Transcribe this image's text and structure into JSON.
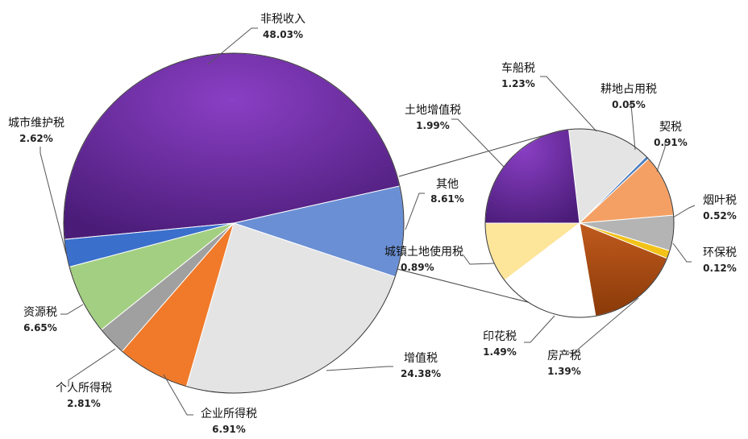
{
  "chart_data": {
    "type": "pie",
    "subtype": "pie-of-pie",
    "title": "",
    "main_pie": [
      {
        "name": "非税收入",
        "pct": "48.03%",
        "value": 48.03,
        "color": "#7030a0"
      },
      {
        "name": "其他",
        "pct": "8.61%",
        "value": 8.61,
        "color": "#6a8fd4"
      },
      {
        "name": "增值税",
        "pct": "24.38%",
        "value": 24.38,
        "color": "#e4e4e4"
      },
      {
        "name": "企业所得税",
        "pct": "6.91%",
        "value": 6.91,
        "color": "#f07a2a"
      },
      {
        "name": "个人所得税",
        "pct": "2.81%",
        "value": 2.81,
        "color": "#a0a0a0"
      },
      {
        "name": "资源税",
        "pct": "6.65%",
        "value": 6.65,
        "color": "#a3cf82"
      },
      {
        "name": "城市维护税",
        "pct": "2.62%",
        "value": 2.62,
        "color": "#3a6fcc"
      }
    ],
    "secondary_pie": [
      {
        "name": "车船税",
        "pct": "1.23%",
        "value": 1.23,
        "color": "#e4e4e4"
      },
      {
        "name": "耕地占用税",
        "pct": "0.05%",
        "value": 0.05,
        "color": "#4f7fc0"
      },
      {
        "name": "契税",
        "pct": "0.91%",
        "value": 0.91,
        "color": "#f4a064"
      },
      {
        "name": "烟叶税",
        "pct": "0.52%",
        "value": 0.52,
        "color": "#b4b4b4"
      },
      {
        "name": "环保税",
        "pct": "0.12%",
        "value": 0.12,
        "color": "#f2c218"
      },
      {
        "name": "房产税",
        "pct": "1.39%",
        "value": 1.39,
        "color": "#b04e10"
      },
      {
        "name": "印花税",
        "pct": "1.49%",
        "value": 1.49,
        "color": "#ffffff"
      },
      {
        "name": "城镇土地使用税",
        "pct": "0.89%",
        "value": 0.89,
        "color": "#fde59a"
      },
      {
        "name": "土地增值税",
        "pct": "1.99%",
        "value": 1.99,
        "color": "#7030a0"
      }
    ]
  }
}
